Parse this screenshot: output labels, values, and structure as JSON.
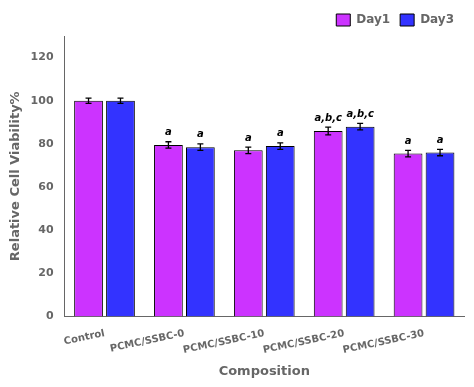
{
  "chart_data": {
    "type": "bar",
    "categories": [
      "Control",
      "PCMC/SSBC-0",
      "PCMC/SSBC-10",
      "PCMC/SSBC-20",
      "PCMC/SSBC-30"
    ],
    "series": [
      {
        "name": "Day1",
        "color": "#CC33FF",
        "values": [
          100.0,
          79.5,
          77.0,
          86.0,
          75.5
        ],
        "errors": [
          1.2,
          1.5,
          1.5,
          1.8,
          1.5
        ],
        "annotations": [
          null,
          "a",
          "a",
          "a,b,c",
          "a"
        ]
      },
      {
        "name": "Day3",
        "color": "#3333FF",
        "values": [
          100.0,
          78.5,
          79.0,
          88.0,
          76.0
        ],
        "errors": [
          1.2,
          1.5,
          1.5,
          1.5,
          1.5
        ],
        "annotations": [
          null,
          "a",
          "a",
          "a,b,c",
          "a"
        ]
      }
    ],
    "xlabel": "Composition",
    "ylabel": "Relative Cell Viability%",
    "ylim": [
      0,
      130
    ],
    "yticks": [
      0,
      20,
      40,
      60,
      80,
      100,
      120
    ],
    "legend": "upper right",
    "grid": false
  }
}
